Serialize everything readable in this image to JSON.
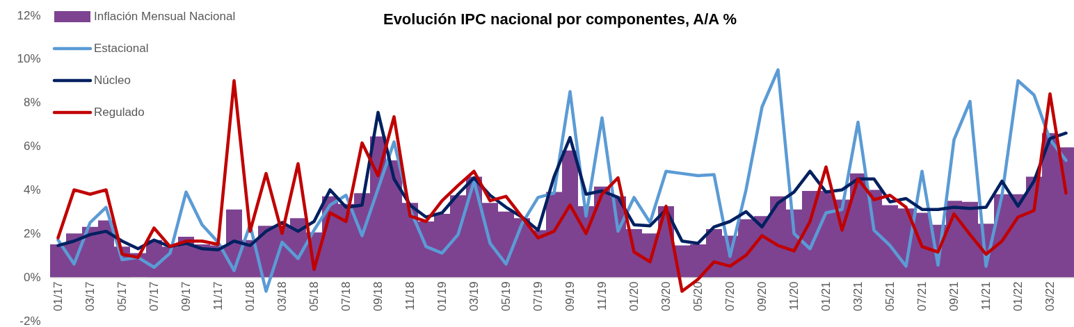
{
  "chart_data": {
    "type": "bar",
    "title": "Evolución IPC nacional por componentes, A/A %",
    "categories": [
      "01/17",
      null,
      "03/17",
      null,
      "05/17",
      null,
      "07/17",
      null,
      "09/17",
      null,
      "11/17",
      null,
      "01/18",
      null,
      "03/18",
      null,
      "05/18",
      null,
      "07/18",
      null,
      "09/18",
      null,
      "11/18",
      null,
      "01/19",
      null,
      "03/19",
      null,
      "05/19",
      null,
      "07/19",
      null,
      "09/19",
      null,
      "11/19",
      null,
      "01/20",
      null,
      "03/20",
      null,
      "05/20",
      null,
      "07/20",
      null,
      "09/20",
      null,
      "11/20",
      null,
      "01/21",
      null,
      "03/21",
      null,
      "05/21",
      null,
      "07/21",
      null,
      "09/21",
      null,
      "11/21",
      null,
      "01/22",
      null,
      "03/22",
      null
    ],
    "series": [
      {
        "name": "Inflación Mensual Nacional",
        "color": "#7d4391",
        "values": [
          1.5,
          2.0,
          2.3,
          2.6,
          1.4,
          1.1,
          1.7,
          1.4,
          1.85,
          1.5,
          1.45,
          3.1,
          1.7,
          2.35,
          2.35,
          2.7,
          2.05,
          3.7,
          3.35,
          3.85,
          6.45,
          5.35,
          3.4,
          2.55,
          2.9,
          3.75,
          4.6,
          3.4,
          3.0,
          2.7,
          2.15,
          3.9,
          5.8,
          3.25,
          4.15,
          3.7,
          2.2,
          2.0,
          3.25,
          1.45,
          1.5,
          2.2,
          1.9,
          2.65,
          2.8,
          3.7,
          3.1,
          3.95,
          3.95,
          3.55,
          4.75,
          4.0,
          3.3,
          3.15,
          2.95,
          2.4,
          3.5,
          3.45,
          2.45,
          3.8,
          3.8,
          4.6,
          6.6,
          5.95
        ]
      },
      {
        "name": "Estacional",
        "type": "line",
        "color": "#5b9bd5",
        "values": [
          1.7,
          0.6,
          2.5,
          3.2,
          0.8,
          0.9,
          0.45,
          1.1,
          3.9,
          2.4,
          1.6,
          0.3,
          2.4,
          -0.65,
          1.6,
          0.85,
          2.15,
          3.3,
          3.75,
          1.9,
          4.05,
          6.2,
          3.1,
          1.4,
          1.1,
          1.95,
          4.4,
          1.55,
          0.6,
          2.45,
          3.65,
          3.85,
          8.5,
          2.8,
          7.3,
          2.1,
          3.65,
          2.5,
          4.85,
          4.75,
          4.65,
          4.7,
          0.95,
          4.0,
          7.8,
          9.5,
          2.0,
          1.3,
          2.95,
          3.1,
          7.1,
          2.15,
          1.45,
          0.5,
          4.85,
          0.55,
          6.3,
          8.05,
          0.5,
          3.75,
          9.0,
          8.35,
          6.3,
          5.35
        ]
      },
      {
        "name": "Núcleo",
        "type": "line",
        "color": "#002060",
        "values": [
          1.45,
          1.65,
          1.95,
          2.1,
          1.65,
          1.3,
          1.7,
          1.4,
          1.55,
          1.3,
          1.25,
          1.65,
          1.45,
          2.1,
          2.5,
          2.1,
          2.55,
          4.0,
          3.2,
          3.3,
          7.55,
          4.5,
          3.3,
          2.75,
          2.95,
          3.8,
          4.55,
          3.75,
          3.2,
          2.75,
          2.15,
          4.6,
          6.4,
          3.8,
          3.95,
          3.65,
          2.4,
          2.35,
          3.1,
          1.65,
          1.55,
          2.3,
          2.55,
          3.0,
          2.3,
          3.4,
          3.9,
          4.85,
          3.9,
          4.0,
          4.5,
          4.5,
          3.45,
          3.6,
          3.1,
          3.1,
          3.2,
          3.15,
          3.2,
          4.4,
          3.25,
          4.4,
          6.35,
          6.6
        ]
      },
      {
        "name": "Regulado",
        "type": "line",
        "color": "#c00000",
        "values": [
          1.8,
          4.0,
          3.8,
          4.0,
          1.05,
          0.9,
          2.25,
          1.4,
          1.65,
          1.65,
          1.5,
          9.0,
          2.1,
          4.75,
          2.0,
          5.2,
          0.35,
          2.95,
          2.55,
          6.15,
          4.65,
          7.35,
          2.8,
          2.55,
          3.5,
          4.2,
          4.85,
          3.5,
          3.7,
          2.75,
          1.8,
          2.1,
          3.3,
          2.0,
          3.8,
          4.55,
          1.15,
          0.7,
          3.25,
          -0.65,
          -0.1,
          0.7,
          0.5,
          1.0,
          1.9,
          1.45,
          1.2,
          2.55,
          5.05,
          2.15,
          4.5,
          3.55,
          3.75,
          3.2,
          1.4,
          1.15,
          2.9,
          1.95,
          1.05,
          1.65,
          2.75,
          3.05,
          8.4,
          3.85
        ]
      }
    ],
    "ylim": [
      -2,
      12
    ],
    "yticks": [
      {
        "value": -2,
        "label": "-2%"
      },
      {
        "value": 0,
        "label": "0%"
      },
      {
        "value": 2,
        "label": "2%"
      },
      {
        "value": 4,
        "label": "4%"
      },
      {
        "value": 6,
        "label": "6%"
      },
      {
        "value": 8,
        "label": "8%"
      },
      {
        "value": 10,
        "label": "10%"
      },
      {
        "value": 12,
        "label": "12%"
      }
    ],
    "legend": "top left",
    "grid": false,
    "marker": "none",
    "line_style": "solid"
  }
}
